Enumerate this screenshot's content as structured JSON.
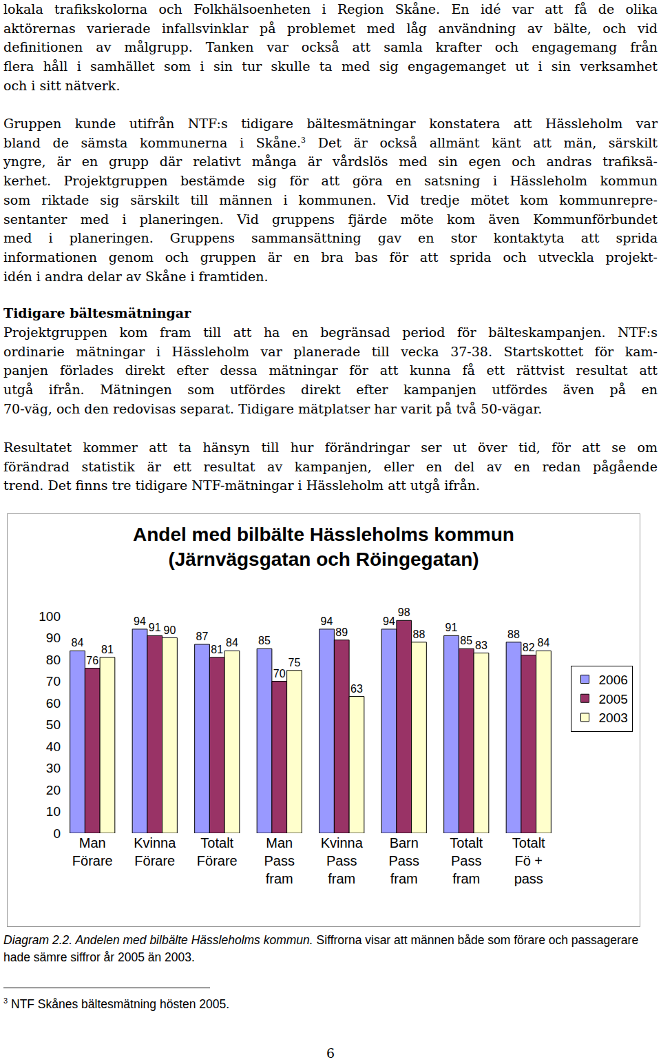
{
  "blocks": [
    {
      "type": "paragraph",
      "lines": [
        "lokala trafikskolorna och Folkhälsoenheten i Region Skåne. En idé var att få de olika",
        "aktörernas varierade infallsvinklar på problemet med låg användning av bälte, och vid",
        "definitionen av målgrupp. Tanken var också att samla krafter och engagemang från",
        "flera håll i samhället som i sin tur skulle ta med sig engagemanget ut i sin verksamhet",
        "och i sitt nätverk."
      ]
    },
    {
      "type": "paragraph",
      "lines": [
        "Gruppen kunde utifrån NTF:s tidigare bältesmätningar konstatera att Hässleholm var",
        {
          "before": "bland de sämsta kommunerna i Skåne.",
          "sup": "3",
          "after": " Det är också allmänt känt att män, särskilt"
        },
        "yngre, är en grupp där relativt många är vårdslös med sin egen och andras trafiksä-",
        "kerhet. Projektgruppen bestämde sig för att göra en satsning i Hässleholm kommun",
        "som riktade sig särskilt till männen i kommunen. Vid tredje mötet kom kommunrepre-",
        "sentanter med i planeringen. Vid gruppens fjärde möte kom även Kommunförbundet",
        "med i planeringen. Gruppens sammansättning gav en stor kontaktyta att sprida",
        "informationen genom och gruppen är en bra bas för att sprida och utveckla projekt-",
        "idén i andra delar av Skåne i framtiden."
      ]
    },
    {
      "type": "heading",
      "text": "Tidigare bältesmätningar"
    },
    {
      "type": "paragraph",
      "lines": [
        "Projektgruppen kom fram till att ha en begränsad period för bälteskampanjen. NTF:s",
        "ordinarie mätningar i Hässleholm var planerade till vecka 37-38. Startskottet för kam-",
        "panjen förlades direkt efter dessa mätningar för att kunna få ett rättvist resultat att",
        "utgå ifrån. Mätningen som utfördes direkt efter kampanjen utfördes även på en",
        "70-väg, och den redovisas separat. Tidigare mätplatser har varit på två 50-vägar."
      ]
    },
    {
      "type": "paragraph",
      "lines": [
        "Resultatet kommer att ta hänsyn till hur förändringar ser ut över tid, för att se om",
        "förändrad statistik är ett resultat av kampanjen, eller en del av en redan pågående",
        "trend. Det finns tre tidigare NTF-mätningar i Hässleholm att utgå ifrån."
      ]
    }
  ],
  "chart_data": {
    "type": "bar",
    "title": "Andel med bilbälte Hässleholms kommun\n(Järnvägsgatan och Röingegatan)",
    "categories": [
      "Man\nFörare",
      "Kvinna\nFörare",
      "Totalt\nFörare",
      "Man\nPass\nfram",
      "Kvinna\nPass\nfram",
      "Barn\nPass\nfram",
      "Totalt\nPass\nfram",
      "Totalt\nFö +\npass"
    ],
    "series": [
      {
        "name": "2006",
        "color": "#9999ff",
        "values": [
          84,
          94,
          87,
          85,
          94,
          94,
          91,
          88
        ]
      },
      {
        "name": "2005",
        "color": "#993366",
        "values": [
          76,
          91,
          81,
          70,
          89,
          98,
          85,
          82
        ]
      },
      {
        "name": "2003",
        "color": "#ffffcc",
        "values": [
          81,
          90,
          84,
          75,
          63,
          88,
          83,
          84
        ]
      }
    ],
    "ylim": [
      0,
      100
    ],
    "yticks": [
      0,
      10,
      20,
      30,
      40,
      50,
      60,
      70,
      80,
      90,
      100
    ],
    "grid": false,
    "legend": "right",
    "data_labels": true
  },
  "caption": {
    "label": "Diagram 2.2. Andelen med bilbälte Hässleholms kommun.",
    "text": "Siffrorna visar att männen både som förare och passagerare hade sämre siffror år 2005 än 2003."
  },
  "footnote": {
    "number": "3",
    "text": "NTF Skånes bältesmätning hösten 2005."
  },
  "page_number": 6
}
